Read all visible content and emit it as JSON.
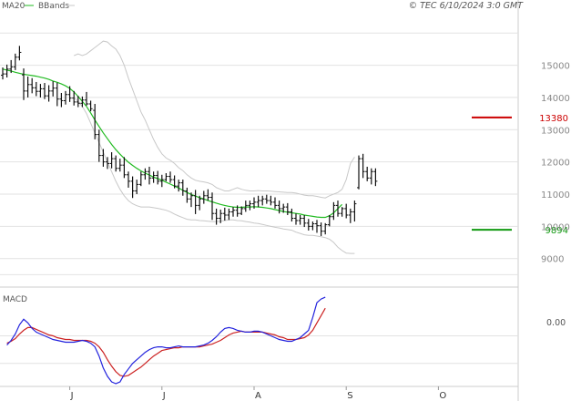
{
  "header": {
    "legend_ma20": "MA20",
    "legend_bbands": "BBands",
    "copyright": "© TEC 6/10/2024 3:0 GMT"
  },
  "colors": {
    "background": "#ffffff",
    "price": "#111111",
    "ma20": "#22bb22",
    "bbands": "#c8c8c8",
    "grid": "#e2e2e2",
    "frame": "#cccccc",
    "resistance": "#cc0000",
    "support": "#119911",
    "macd_line": "#2222dd",
    "macd_signal": "#cc2222"
  },
  "macd_panel": {
    "label": "MACD",
    "ytick_label": "0.00",
    "ylim": [
      -55,
      50
    ]
  },
  "chart_data": {
    "type": "line",
    "subtype": "ohlc",
    "title": "",
    "xlabel": "",
    "ylabel": "",
    "ylim": [
      8200,
      16600
    ],
    "grid": true,
    "ytick_values": [
      9000,
      10000,
      11000,
      12000,
      13000,
      14000,
      15000
    ],
    "ytick_labels": [
      "9000",
      "10000",
      "11000",
      "12000",
      "13000",
      "14000",
      "15000"
    ],
    "xtick_labels": [
      "J",
      "J",
      "A",
      "S",
      "O"
    ],
    "xtick_index": [
      16,
      38,
      60,
      82,
      104
    ],
    "levels": [
      {
        "name": "resistance",
        "value": 13380,
        "label": "13380"
      },
      {
        "name": "support",
        "value": 9894,
        "label": "9894"
      }
    ],
    "ohlc": [
      [
        14690,
        14930,
        14560,
        14730
      ],
      [
        14730,
        15020,
        14620,
        14880
      ],
      [
        14880,
        15160,
        14760,
        14950
      ],
      [
        14950,
        15360,
        14850,
        15250
      ],
      [
        15250,
        15600,
        15150,
        15400
      ],
      [
        14700,
        14900,
        13920,
        14200
      ],
      [
        14200,
        14650,
        14000,
        14400
      ],
      [
        14400,
        14600,
        14130,
        14300
      ],
      [
        14300,
        14480,
        14040,
        14190
      ],
      [
        14190,
        14420,
        14000,
        14270
      ],
      [
        14270,
        14450,
        13950,
        14050
      ],
      [
        14050,
        14380,
        13870,
        14200
      ],
      [
        14200,
        14500,
        14030,
        14290
      ],
      [
        14290,
        14460,
        13730,
        13950
      ],
      [
        13950,
        14140,
        13700,
        13900
      ],
      [
        13900,
        14200,
        13780,
        14090
      ],
      [
        14090,
        14350,
        13860,
        13980
      ],
      [
        13980,
        14200,
        13750,
        13860
      ],
      [
        13860,
        14050,
        13700,
        13820
      ],
      [
        13820,
        14030,
        13700,
        13920
      ],
      [
        13920,
        14170,
        13750,
        13800
      ],
      [
        13800,
        13900,
        13570,
        13650
      ],
      [
        13600,
        13800,
        12700,
        12850
      ],
      [
        12850,
        13000,
        12000,
        12200
      ],
      [
        12200,
        12400,
        11850,
        12000
      ],
      [
        12000,
        12150,
        11780,
        11950
      ],
      [
        11950,
        12300,
        11800,
        12100
      ],
      [
        12100,
        12200,
        11700,
        11800
      ],
      [
        11800,
        12100,
        11700,
        11900
      ],
      [
        11900,
        12150,
        11500,
        11600
      ],
      [
        11600,
        11700,
        11200,
        11400
      ],
      [
        11400,
        11550,
        10880,
        11100
      ],
      [
        11100,
        11450,
        11000,
        11300
      ],
      [
        11300,
        11700,
        11250,
        11600
      ],
      [
        11600,
        11800,
        11450,
        11700
      ],
      [
        11700,
        11850,
        11300,
        11500
      ],
      [
        11500,
        11700,
        11350,
        11580
      ],
      [
        11580,
        11720,
        11300,
        11400
      ],
      [
        11400,
        11600,
        11220,
        11450
      ],
      [
        11450,
        11650,
        11400,
        11550
      ],
      [
        11550,
        11700,
        11350,
        11450
      ],
      [
        11450,
        11580,
        11180,
        11250
      ],
      [
        11250,
        11450,
        11080,
        11350
      ],
      [
        11350,
        11450,
        10950,
        11100
      ],
      [
        11100,
        11200,
        10730,
        10850
      ],
      [
        10850,
        11050,
        10600,
        10950
      ],
      [
        10950,
        11130,
        10380,
        10650
      ],
      [
        10650,
        10950,
        10500,
        10850
      ],
      [
        10850,
        11100,
        10700,
        10950
      ],
      [
        10950,
        11150,
        10800,
        10900
      ],
      [
        10900,
        11050,
        10200,
        10400
      ],
      [
        10400,
        10550,
        10050,
        10250
      ],
      [
        10250,
        10520,
        10100,
        10400
      ],
      [
        10400,
        10580,
        10180,
        10350
      ],
      [
        10350,
        10550,
        10200,
        10450
      ],
      [
        10450,
        10600,
        10300,
        10500
      ],
      [
        10500,
        10650,
        10300,
        10400
      ],
      [
        10400,
        10620,
        10350,
        10550
      ],
      [
        10550,
        10800,
        10450,
        10650
      ],
      [
        10650,
        10800,
        10500,
        10700
      ],
      [
        10700,
        10900,
        10550,
        10750
      ],
      [
        10750,
        10950,
        10600,
        10800
      ],
      [
        10800,
        10950,
        10650,
        10850
      ],
      [
        10850,
        10980,
        10700,
        10800
      ],
      [
        10800,
        10950,
        10650,
        10750
      ],
      [
        10750,
        10900,
        10550,
        10650
      ],
      [
        10650,
        10800,
        10400,
        10550
      ],
      [
        10550,
        10700,
        10420,
        10600
      ],
      [
        10600,
        10720,
        10350,
        10450
      ],
      [
        10450,
        10550,
        10150,
        10250
      ],
      [
        10250,
        10400,
        10050,
        10180
      ],
      [
        10180,
        10350,
        10050,
        10250
      ],
      [
        10250,
        10350,
        9980,
        10100
      ],
      [
        10100,
        10230,
        9870,
        10000
      ],
      [
        10000,
        10150,
        9880,
        10080
      ],
      [
        10080,
        10200,
        9800,
        10020
      ],
      [
        10020,
        10120,
        9700,
        9850
      ],
      [
        9850,
        10100,
        9750,
        10050
      ],
      [
        10050,
        10350,
        10000,
        10300
      ],
      [
        10300,
        10750,
        10200,
        10650
      ],
      [
        10650,
        10800,
        10300,
        10400
      ],
      [
        10400,
        10600,
        10300,
        10550
      ],
      [
        10550,
        10700,
        10250,
        10350
      ],
      [
        10350,
        10550,
        10100,
        10450
      ],
      [
        10450,
        10800,
        10150,
        10700
      ],
      [
        11200,
        12200,
        11150,
        12100
      ],
      [
        12100,
        12250,
        11500,
        11700
      ],
      [
        11700,
        11850,
        11400,
        11500
      ],
      [
        11500,
        11800,
        11300,
        11700
      ],
      [
        11700,
        11800,
        11250,
        11400
      ]
    ],
    "series": [
      {
        "name": "MA20",
        "x_start": 0,
        "values": [
          14880,
          14850,
          14820,
          14780,
          14750,
          14720,
          14700,
          14680,
          14660,
          14630,
          14600,
          14560,
          14510,
          14470,
          14420,
          14360,
          14280,
          14170,
          14030,
          13880,
          13720,
          13520,
          13300,
          13100,
          12900,
          12720,
          12540,
          12380,
          12240,
          12110,
          11990,
          11890,
          11800,
          11720,
          11650,
          11590,
          11530,
          11480,
          11430,
          11370,
          11310,
          11250,
          11190,
          11120,
          11050,
          10990,
          10940,
          10890,
          10850,
          10800,
          10760,
          10720,
          10680,
          10650,
          10620,
          10600,
          10590,
          10590,
          10600,
          10600,
          10610,
          10600,
          10590,
          10570,
          10550,
          10520,
          10490,
          10460,
          10440,
          10420,
          10400,
          10380,
          10350,
          10330,
          10310,
          10290,
          10280,
          10280,
          10330,
          10420,
          10550,
          10680
        ]
      },
      {
        "name": "BBands upper",
        "x_start": 17,
        "values": [
          15300,
          15350,
          15300,
          15350,
          15450,
          15550,
          15650,
          15750,
          15720,
          15600,
          15500,
          15300,
          15000,
          14600,
          14250,
          13900,
          13550,
          13300,
          13000,
          12700,
          12450,
          12250,
          12120,
          12050,
          11950,
          11820,
          11730,
          11600,
          11500,
          11430,
          11400,
          11380,
          11350,
          11300,
          11200,
          11150,
          11100,
          11100,
          11150,
          11200,
          11150,
          11120,
          11100,
          11100,
          11110,
          11100,
          11100,
          11090,
          11080,
          11070,
          11060,
          11050,
          11050,
          11030,
          11000,
          10970,
          10950,
          10950,
          10930,
          10900,
          10880,
          10950,
          11000,
          11050,
          11150,
          11450,
          11950,
          12150
        ]
      },
      {
        "name": "BBands lower",
        "x_start": 17,
        "values": [
          14000,
          13880,
          13720,
          13500,
          13200,
          12900,
          12600,
          12300,
          12000,
          11700,
          11400,
          11150,
          10950,
          10800,
          10700,
          10640,
          10600,
          10600,
          10600,
          10580,
          10560,
          10530,
          10500,
          10450,
          10380,
          10320,
          10270,
          10220,
          10200,
          10200,
          10180,
          10170,
          10160,
          10150,
          10150,
          10160,
          10180,
          10200,
          10200,
          10180,
          10170,
          10150,
          10130,
          10100,
          10090,
          10060,
          10030,
          10000,
          9970,
          9950,
          9920,
          9900,
          9880,
          9820,
          9780,
          9740,
          9720,
          9720,
          9700,
          9680,
          9650,
          9600,
          9500,
          9350,
          9250,
          9170,
          9160,
          9160
        ]
      }
    ],
    "macd": {
      "x_start": 1,
      "line": [
        -10,
        -5,
        2,
        12,
        18,
        14,
        8,
        4,
        2,
        0,
        -2,
        -4,
        -5,
        -6,
        -7,
        -7,
        -7,
        -6,
        -5,
        -6,
        -8,
        -12,
        -22,
        -35,
        -44,
        -50,
        -52,
        -50,
        -42,
        -36,
        -30,
        -26,
        -22,
        -18,
        -15,
        -13,
        -12,
        -12,
        -13,
        -13,
        -12,
        -11,
        -12,
        -12,
        -12,
        -12,
        -11,
        -10,
        -8,
        -5,
        -1,
        4,
        8,
        9,
        8,
        6,
        5,
        4,
        4,
        5,
        5,
        4,
        2,
        0,
        -2,
        -4,
        -5,
        -6,
        -6,
        -4,
        -2,
        2,
        6,
        20,
        36,
        40,
        42
      ],
      "signal": [
        -8,
        -6,
        -3,
        2,
        6,
        9,
        9,
        7,
        5,
        3,
        1,
        0,
        -2,
        -3,
        -4,
        -4,
        -5,
        -5,
        -5,
        -5,
        -6,
        -8,
        -12,
        -18,
        -26,
        -33,
        -39,
        -43,
        -44,
        -43,
        -40,
        -37,
        -34,
        -30,
        -26,
        -22,
        -19,
        -16,
        -15,
        -14,
        -13,
        -13,
        -12,
        -12,
        -12,
        -12,
        -12,
        -11,
        -10,
        -9,
        -7,
        -5,
        -2,
        1,
        3,
        4,
        5,
        4,
        4,
        4,
        4,
        4,
        3,
        2,
        1,
        -1,
        -2,
        -4,
        -4,
        -4,
        -3,
        -2,
        1,
        6,
        14,
        22,
        30
      ]
    }
  }
}
